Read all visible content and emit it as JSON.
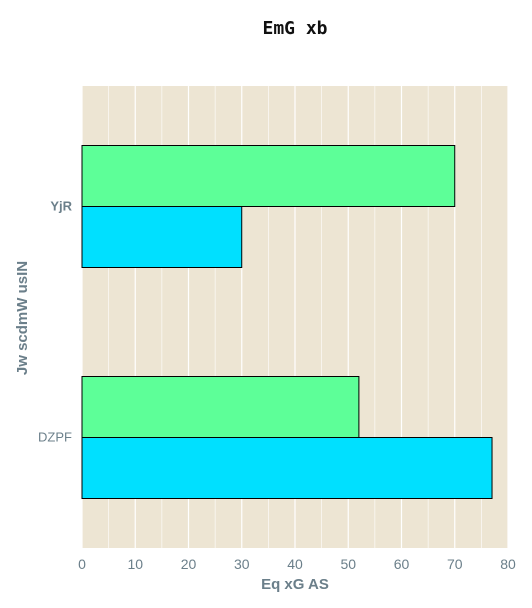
{
  "chart_data": {
    "type": "bar",
    "orientation": "horizontal",
    "title": "EmG  xb",
    "xlabel": "Eq xG  AS",
    "ylabel": "Jw scdmW usIN",
    "categories": [
      "YjR",
      "DZPF"
    ],
    "series": [
      {
        "color": "#5dff98",
        "values": [
          70,
          52
        ]
      },
      {
        "color": "#00e0ff",
        "values": [
          30,
          77
        ]
      }
    ],
    "xlim": [
      0,
      80
    ],
    "xticks": [
      0,
      10,
      20,
      30,
      40,
      50,
      60,
      70,
      80
    ],
    "grid": true,
    "legend": "none",
    "plot_background": "#ede5d3",
    "grid_color": "#ffffff",
    "bar_edge_color": "#000000"
  }
}
